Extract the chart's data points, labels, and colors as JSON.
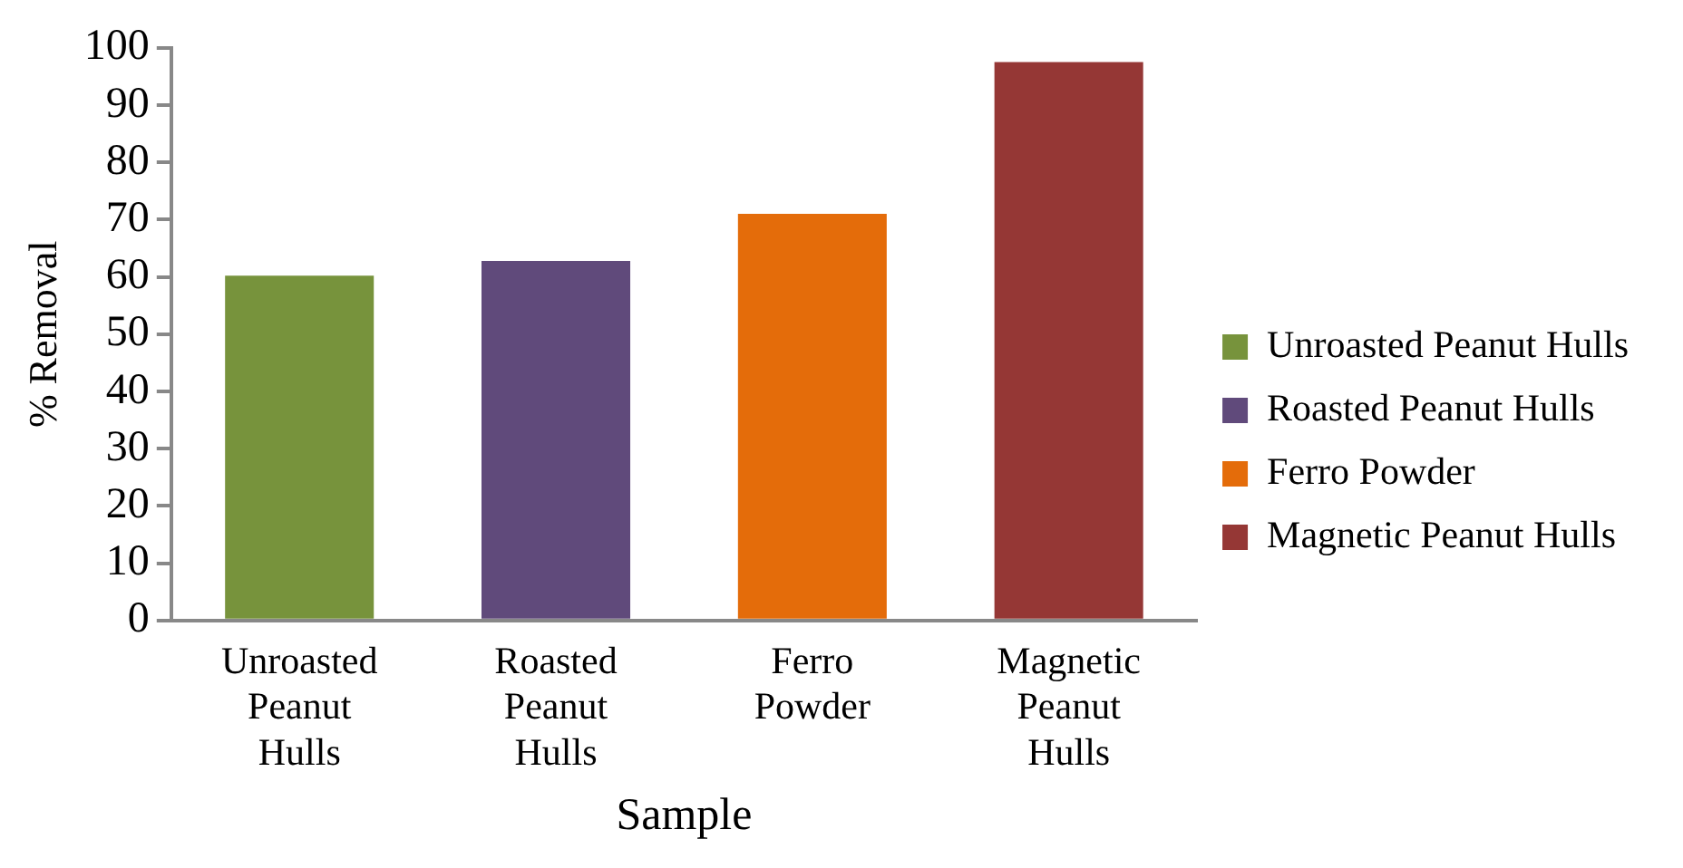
{
  "chart_data": {
    "type": "bar",
    "xlabel": "Sample",
    "ylabel": "% Removal",
    "categories": [
      "Unroasted Peanut Hulls",
      "Roasted Peanut Hulls",
      "Ferro Powder",
      "Magnetic Peanut Hulls"
    ],
    "series": [
      {
        "name": "Unroasted Peanut Hulls",
        "color": "#77933c",
        "values": [
          60.2,
          null,
          null,
          null
        ]
      },
      {
        "name": "Roasted Peanut Hulls",
        "color": "#604a7b",
        "values": [
          null,
          62.8,
          null,
          null
        ]
      },
      {
        "name": "Ferro Powder",
        "color": "#e46c0a",
        "values": [
          null,
          null,
          71.0,
          null
        ]
      },
      {
        "name": "Magnetic Peanut Hulls",
        "color": "#953735",
        "values": [
          null,
          null,
          null,
          97.5
        ]
      }
    ],
    "ylim": [
      0,
      100
    ],
    "yticks": [
      0,
      10,
      20,
      30,
      40,
      50,
      60,
      70,
      80,
      90,
      100
    ],
    "legend": "right"
  }
}
